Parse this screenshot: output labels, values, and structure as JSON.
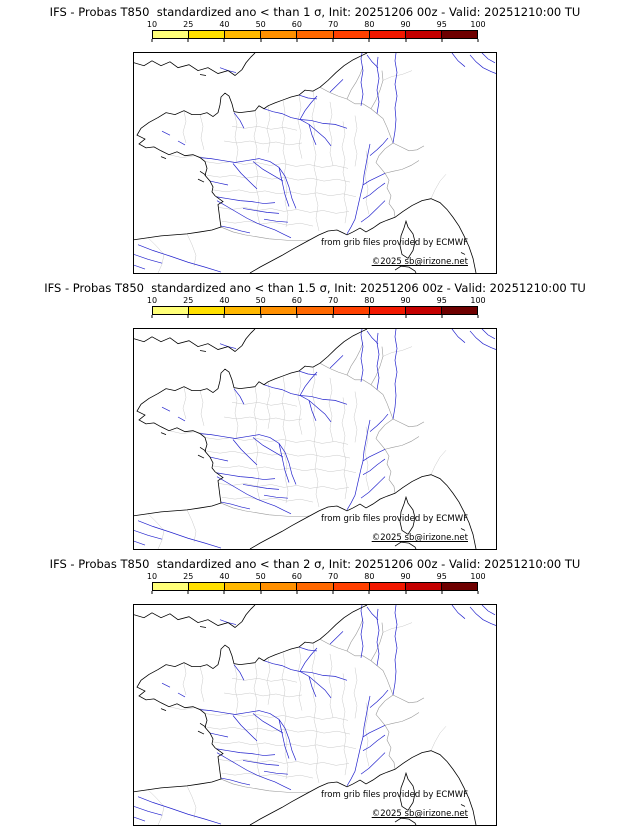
{
  "panels": [
    {
      "title": "IFS - Probas T850  standardized ano < than 1 σ, Init: 20251206 00z - Valid: 20251210:00 TU",
      "attribution": "from grib files provided by ECMWF",
      "copyright": "©2025 sb@irizone.net"
    },
    {
      "title": "IFS - Probas T850  standardized ano < than 1.5 σ, Init: 20251206 00z - Valid: 20251210:00 TU",
      "attribution": "from grib files provided by ECMWF",
      "copyright": "©2025 sb@irizone.net"
    },
    {
      "title": "IFS - Probas T850  standardized ano < than 2 σ, Init: 20251206 00z - Valid: 20251210:00 TU",
      "attribution": "from grib files provided by ECMWF",
      "copyright": "©2025 sb@irizone.net"
    }
  ],
  "colorbar": {
    "tick_labels": [
      "10",
      "25",
      "40",
      "50",
      "60",
      "70",
      "80",
      "90",
      "95",
      "100"
    ],
    "segment_colors": [
      "#ffff78",
      "#ffe000",
      "#ffb800",
      "#ff9000",
      "#ff6800",
      "#ff4000",
      "#f21800",
      "#c40000",
      "#6e0000"
    ]
  },
  "map": {
    "colors": {
      "coast": "#000000",
      "country-border": "#9a9a9a",
      "admin-border": "#c8c8c8",
      "river": "#2424cd"
    }
  }
}
